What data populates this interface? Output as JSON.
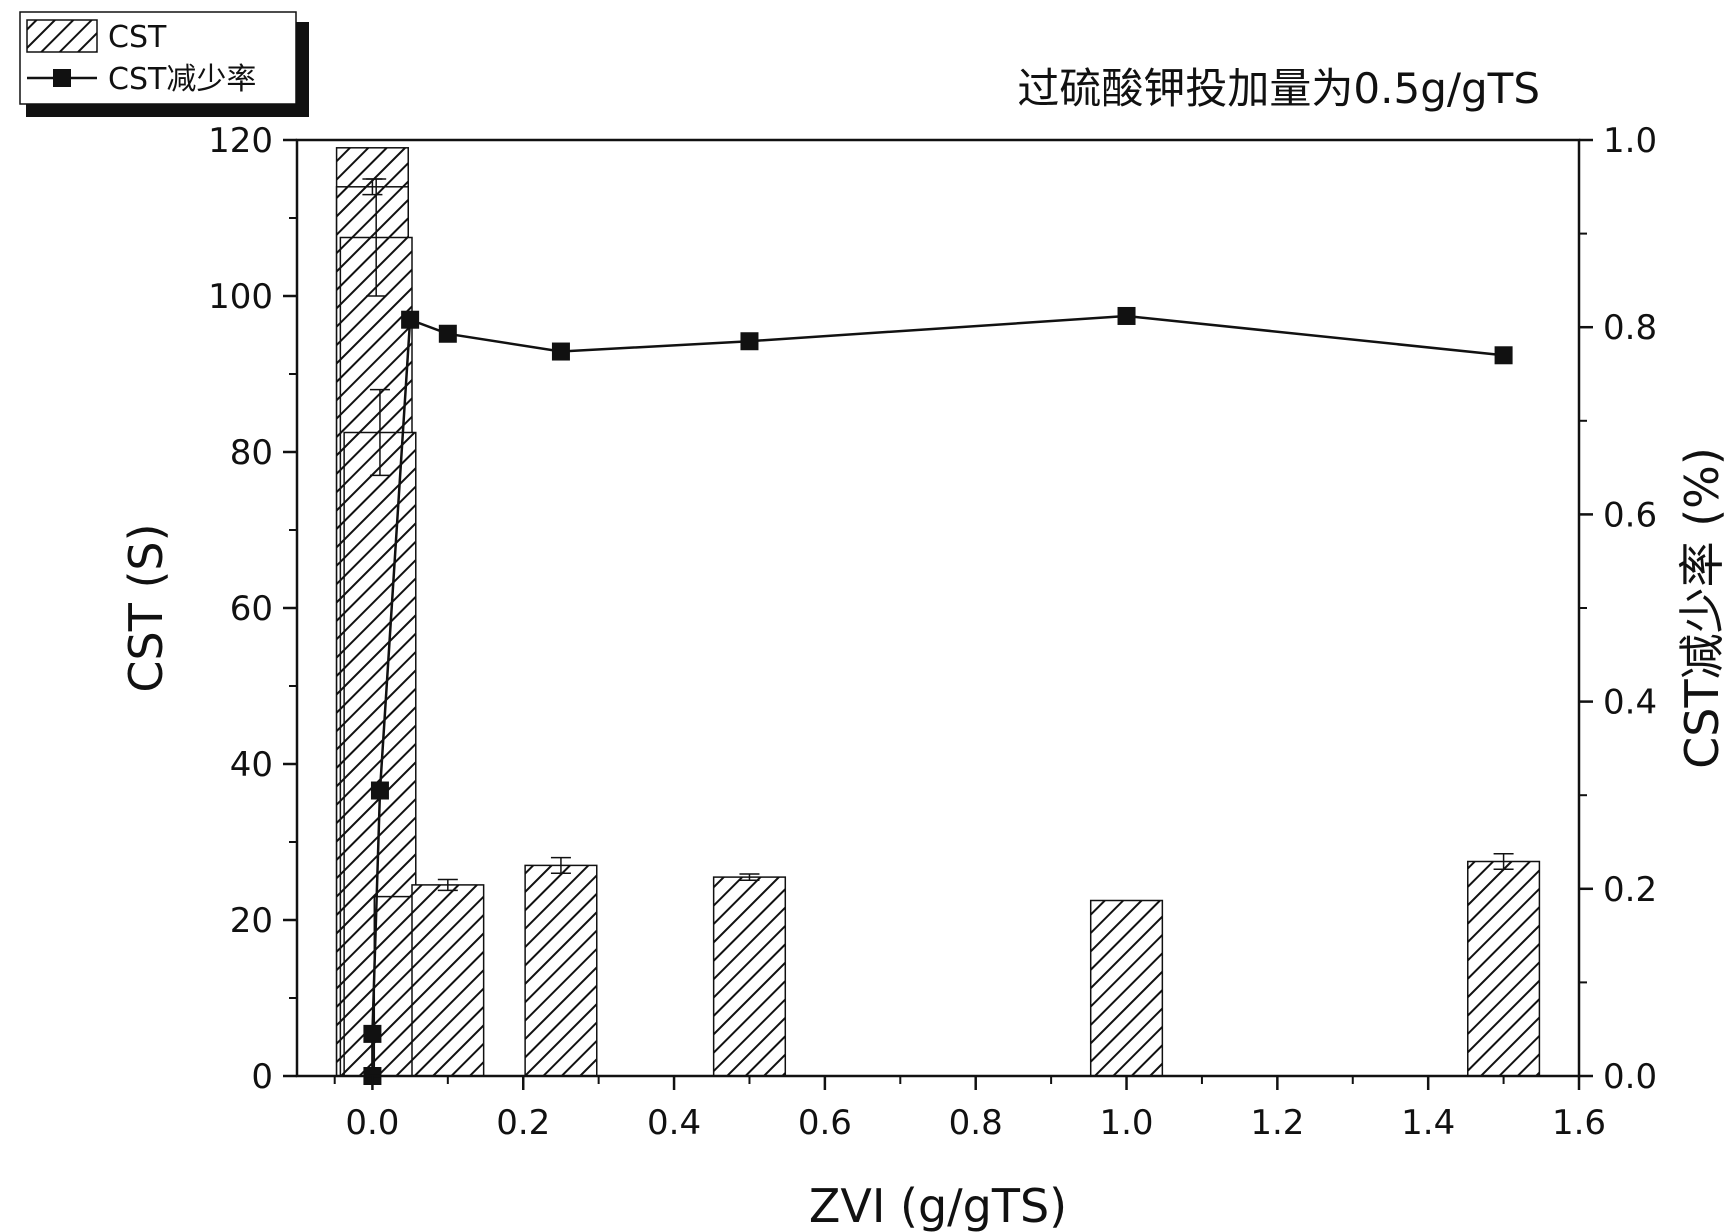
{
  "chart_data": {
    "type": "bar",
    "title": "",
    "annotation": "过硫酸钾投加量为0.5g/gTS",
    "xlabel": "ZVI (g/gTS)",
    "ylabel": "CST (S)",
    "y2label": "CST减少率 (%)",
    "xlim": [
      -0.1,
      1.6
    ],
    "ylim": [
      0,
      120
    ],
    "y2lim": [
      0,
      1.0
    ],
    "x_ticks": [
      "0.0",
      "0.2",
      "0.4",
      "0.6",
      "0.8",
      "1.0",
      "1.2",
      "1.4",
      "1.6"
    ],
    "y_ticks": [
      "0",
      "20",
      "40",
      "60",
      "80",
      "100",
      "120"
    ],
    "y2_ticks": [
      "0.0",
      "0.2",
      "0.4",
      "0.6",
      "0.8",
      "1.0"
    ],
    "legend_position": "top-left",
    "series": [
      {
        "name": "CST",
        "kind": "bar",
        "pattern": "diagonal-hatch",
        "points": [
          {
            "x": 0.0,
            "y": 119.0,
            "err": 0
          },
          {
            "x": 0.0,
            "y": 114.0,
            "err": 1
          },
          {
            "x": 0.005,
            "y": 107.5,
            "err": 7.5
          },
          {
            "x": 0.01,
            "y": 82.5,
            "err": 5.5
          },
          {
            "x": 0.05,
            "y": 23.0,
            "err": 0
          },
          {
            "x": 0.1,
            "y": 24.5,
            "err": 0.7
          },
          {
            "x": 0.25,
            "y": 27.0,
            "err": 1.0
          },
          {
            "x": 0.5,
            "y": 25.5,
            "err": 0.4
          },
          {
            "x": 1.0,
            "y": 22.5,
            "err": 0
          },
          {
            "x": 1.5,
            "y": 27.5,
            "err": 1.0
          }
        ]
      },
      {
        "name": "CST减少率",
        "kind": "line",
        "marker": "square",
        "points": [
          {
            "x": 0.0,
            "y": 0.0
          },
          {
            "x": 0.0,
            "y": 0.045
          },
          {
            "x": 0.01,
            "y": 0.305
          },
          {
            "x": 0.05,
            "y": 0.808
          },
          {
            "x": 0.1,
            "y": 0.793
          },
          {
            "x": 0.25,
            "y": 0.774
          },
          {
            "x": 0.5,
            "y": 0.785
          },
          {
            "x": 1.0,
            "y": 0.812
          },
          {
            "x": 1.5,
            "y": 0.77
          }
        ]
      }
    ]
  }
}
